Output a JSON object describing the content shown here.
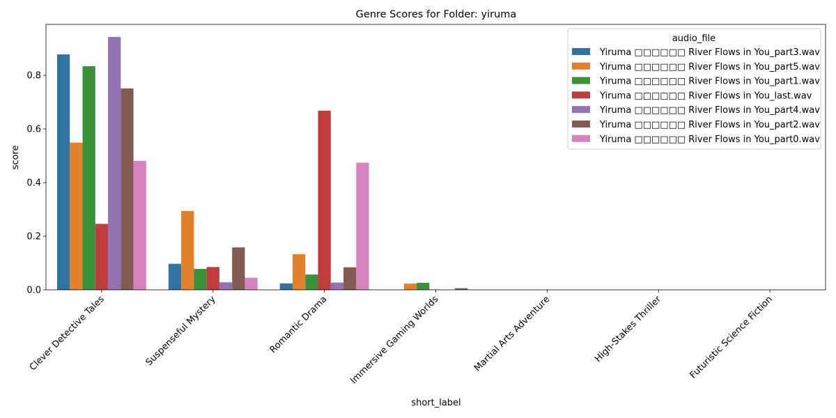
{
  "chart_data": {
    "type": "bar",
    "title": "Genre Scores for Folder: yiruma",
    "xlabel": "short_label",
    "ylabel": "score",
    "ylim": [
      0,
      0.99
    ],
    "yticks": [
      0.0,
      0.2,
      0.4,
      0.6,
      0.8
    ],
    "ytick_labels": [
      "0.0",
      "0.2",
      "0.4",
      "0.6",
      "0.8"
    ],
    "grid": false,
    "legend_title": "audio_file",
    "legend_position": "top-right",
    "categories": [
      "Clever Detective Tales",
      "Suspenseful Mystery",
      "Romantic Drama",
      "Immersive Gaming Worlds",
      "Martial Arts Adventure",
      "High-Stakes Thriller",
      "Futuristic Science Fiction"
    ],
    "series": [
      {
        "name": "Yiruma □□□□□□  River Flows in You_part3.wav",
        "color": "#3274a1",
        "values": [
          0.878,
          0.097,
          0.024,
          0.0,
          0.0,
          0.0,
          0.0
        ]
      },
      {
        "name": "Yiruma □□□□□□  River Flows in You_part5.wav",
        "color": "#e1812c",
        "values": [
          0.549,
          0.294,
          0.133,
          0.023,
          0.0,
          0.0,
          0.0
        ]
      },
      {
        "name": "Yiruma □□□□□□  River Flows in You_part1.wav",
        "color": "#3a923a",
        "values": [
          0.834,
          0.078,
          0.057,
          0.026,
          0.0,
          0.0,
          0.0
        ]
      },
      {
        "name": "Yiruma □□□□□□  River Flows in You_last.wav",
        "color": "#c03d3e",
        "values": [
          0.246,
          0.085,
          0.668,
          0.001,
          0.0,
          0.0,
          0.0
        ]
      },
      {
        "name": "Yiruma □□□□□□  River Flows in You_part4.wav",
        "color": "#9372b2",
        "values": [
          0.943,
          0.028,
          0.027,
          0.0,
          0.0,
          0.0,
          0.0
        ]
      },
      {
        "name": "Yiruma □□□□□□  River Flows in You_part2.wav",
        "color": "#845b53",
        "values": [
          0.751,
          0.158,
          0.084,
          0.006,
          0.0,
          0.0,
          0.0
        ]
      },
      {
        "name": "Yiruma □□□□□□  River Flows in You_part0.wav",
        "color": "#d684bd",
        "values": [
          0.481,
          0.045,
          0.474,
          0.0,
          0.0,
          0.0,
          0.0
        ]
      }
    ]
  }
}
